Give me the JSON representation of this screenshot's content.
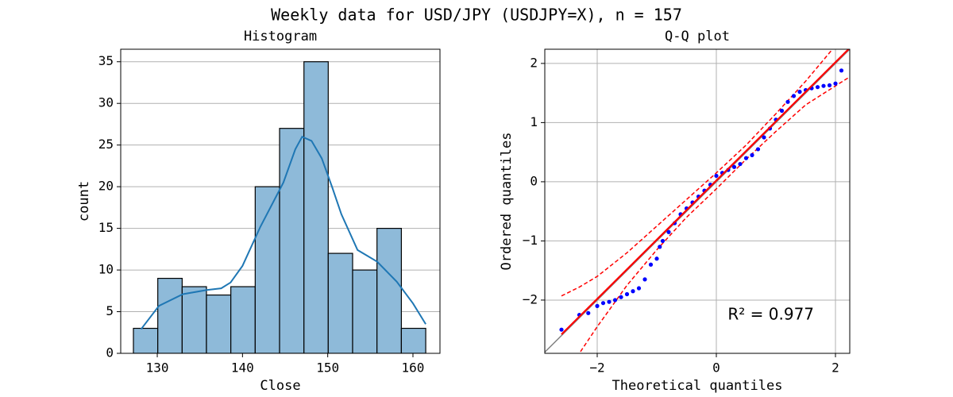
{
  "title": "Weekly data for USD/JPY (USDJPY=X), n = 157",
  "chart_data": [
    {
      "type": "histogram",
      "title": "Histogram",
      "xlabel": "Close",
      "ylabel": "count",
      "bins": [
        127.2,
        130.06,
        132.92,
        135.77,
        138.63,
        141.49,
        144.35,
        147.21,
        150.06,
        152.92,
        155.78,
        158.64,
        161.5
      ],
      "counts": [
        3,
        9,
        8,
        7,
        8,
        20,
        27,
        35,
        12,
        10,
        15,
        3
      ],
      "color": "#8ebad9",
      "edgecolor": "#000000",
      "kde": {
        "color": "#1f77b4",
        "x": [
          128.1,
          130.2,
          133,
          135.8,
          137.5,
          138.6,
          140,
          142.1,
          144.8,
          146.2,
          147,
          148.1,
          149.3,
          150.5,
          151.6,
          153.5,
          155.8,
          158.1,
          160,
          161.5
        ],
        "y": [
          2.9,
          5.7,
          7.1,
          7.6,
          7.8,
          8.5,
          10.5,
          15.2,
          20.5,
          24.5,
          26,
          25.5,
          23.4,
          20,
          16.7,
          12.4,
          11,
          8.6,
          6,
          3.5
        ]
      },
      "xlim": [
        125.71,
        163.17
      ],
      "ylim": [
        0,
        36.5
      ],
      "xticks": [
        130,
        140,
        150,
        160
      ],
      "yticks": [
        0,
        5,
        10,
        15,
        20,
        25,
        30,
        35
      ],
      "grid": "y"
    },
    {
      "type": "qq",
      "title": "Q-Q plot",
      "xlabel": "Theoretical quantiles",
      "ylabel": "Ordered quantiles",
      "x": [
        -2.6,
        -2.3,
        -2.15,
        -2.0,
        -1.9,
        -1.8,
        -1.7,
        -1.6,
        -1.5,
        -1.4,
        -1.3,
        -1.2,
        -1.1,
        -1.0,
        -0.95,
        -0.9,
        -0.8,
        -0.7,
        -0.6,
        -0.5,
        -0.4,
        -0.3,
        -0.2,
        -0.1,
        0,
        0.1,
        0.2,
        0.3,
        0.4,
        0.5,
        0.6,
        0.7,
        0.8,
        0.9,
        1.0,
        1.1,
        1.2,
        1.3,
        1.4,
        1.5,
        1.6,
        1.7,
        1.8,
        1.9,
        2.0,
        2.1
      ],
      "values": [
        -2.5,
        -2.25,
        -2.22,
        -2.1,
        -2.05,
        -2.03,
        -2.0,
        -1.95,
        -1.9,
        -1.85,
        -1.8,
        -1.65,
        -1.4,
        -1.3,
        -1.1,
        -1.0,
        -0.85,
        -0.7,
        -0.55,
        -0.45,
        -0.35,
        -0.25,
        -0.15,
        -0.05,
        0.1,
        0.15,
        0.2,
        0.25,
        0.3,
        0.4,
        0.45,
        0.55,
        0.75,
        0.9,
        1.05,
        1.2,
        1.35,
        1.45,
        1.52,
        1.55,
        1.58,
        1.6,
        1.62,
        1.63,
        1.66,
        1.88
      ],
      "color": "#0000ff",
      "fit": {
        "slope": 1.0,
        "intercept": 0.02,
        "color": "#ff0000"
      },
      "band": {
        "color": "#ff0000",
        "x": [
          -2.6,
          -2.3,
          -2,
          -1.5,
          -1,
          -0.5,
          0,
          0.5,
          1,
          1.5,
          2,
          2.25
        ],
        "upper": [
          -1.93,
          -1.78,
          -1.6,
          -1.2,
          -0.75,
          -0.3,
          0.15,
          0.62,
          1.15,
          1.7,
          2.3,
          2.65
        ],
        "lower": [
          -3.3,
          -2.9,
          -2.45,
          -1.75,
          -1.15,
          -0.6,
          -0.12,
          0.38,
          0.85,
          1.3,
          1.62,
          1.78
        ]
      },
      "reference_color": "#808080",
      "annotation": "R² = 0.977",
      "xlim": [
        -2.88,
        2.24
      ],
      "ylim": [
        -2.9,
        2.24
      ],
      "xticks": [
        {
          "value": -2,
          "label": "−2"
        },
        0,
        2
      ],
      "yticks": [
        {
          "value": -2,
          "label": "−2"
        },
        {
          "value": -1,
          "label": "−1"
        },
        0,
        1,
        2
      ],
      "grid": "both"
    }
  ]
}
